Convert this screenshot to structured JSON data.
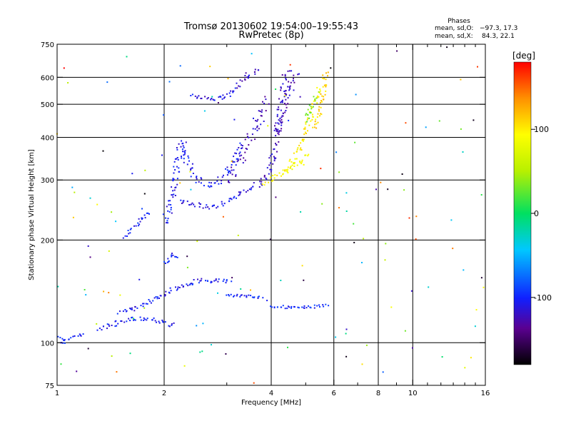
{
  "chart_data": {
    "type": "scatter",
    "title": "Tromsø 20130602 19:54:00–19:55:43",
    "subtitle": "RwPretec (8p)",
    "xlabel": "Frequency [MHz]",
    "ylabel": "Stationary phase Virtual Height [km]",
    "x_scale": "log",
    "y_scale": "log",
    "xlim": [
      1,
      16
    ],
    "ylim": [
      75,
      750
    ],
    "x_ticks": [
      1,
      2,
      4,
      6,
      8,
      10,
      16
    ],
    "x_tick_labels": [
      "1",
      "2",
      "4",
      "6",
      "8",
      "10",
      "16"
    ],
    "x_minor_ticks": [
      3,
      5,
      7,
      9,
      11,
      12,
      13,
      14,
      15
    ],
    "x_gridlines": [
      2,
      4,
      6,
      8,
      10
    ],
    "y_ticks": [
      75,
      100,
      200,
      300,
      400,
      500,
      600,
      750
    ],
    "y_tick_labels": [
      "75",
      "100",
      "200",
      "300",
      "400",
      "500",
      "600",
      "750"
    ],
    "y_gridlines": [
      100,
      200,
      300,
      400,
      500,
      600
    ],
    "grid": true,
    "stats": {
      "header": "Phases",
      "o_label": "mean, sd,O:",
      "o_values": "−97.3, 17.3",
      "x_label": "mean, sd,X:",
      "x_values": "84.3, 22.1"
    },
    "colorbar": {
      "label": "[deg]",
      "range": [
        -180,
        180
      ],
      "ticks": [
        100,
        0,
        -100
      ],
      "tick_labels": [
        "100",
        "0",
        "-100"
      ],
      "colormap": "rainbow"
    },
    "traces": [
      {
        "points": [
          [
            1.0,
            104
          ],
          [
            1.05,
            102
          ],
          [
            1.1,
            104
          ],
          [
            1.15,
            105
          ],
          [
            1.2,
            106
          ]
        ],
        "phase": -100,
        "spread": 2
      },
      {
        "points": [
          [
            1.02,
            100
          ],
          [
            1.06,
            99
          ]
        ],
        "phase": -100,
        "spread": 1.5
      },
      {
        "points": [
          [
            1.3,
            110
          ],
          [
            1.4,
            112
          ],
          [
            1.55,
            116
          ],
          [
            1.7,
            118
          ],
          [
            1.85,
            117
          ],
          [
            2.0,
            114
          ],
          [
            2.15,
            112
          ]
        ],
        "phase": -105,
        "spread": 3
      },
      {
        "points": [
          [
            1.5,
            122
          ],
          [
            1.65,
            126
          ],
          [
            1.8,
            132
          ],
          [
            1.95,
            137
          ],
          [
            2.1,
            143
          ],
          [
            2.3,
            148
          ],
          [
            2.5,
            152
          ],
          [
            2.8,
            152
          ],
          [
            3.1,
            150
          ]
        ],
        "phase": -105,
        "spread": 3
      },
      {
        "points": [
          [
            2.0,
            170
          ],
          [
            2.1,
            182
          ],
          [
            2.2,
            178
          ]
        ],
        "phase": -100,
        "spread": 3
      },
      {
        "points": [
          [
            3.0,
            138
          ],
          [
            3.4,
            137
          ],
          [
            3.8,
            136
          ]
        ],
        "phase": -100,
        "spread": 2
      },
      {
        "points": [
          [
            4.0,
            128
          ],
          [
            4.5,
            127
          ],
          [
            5.0,
            127
          ],
          [
            5.5,
            128
          ],
          [
            5.8,
            129
          ]
        ],
        "phase": -100,
        "spread": 2
      },
      {
        "points": [
          [
            1.55,
            205
          ],
          [
            1.65,
            218
          ],
          [
            1.75,
            233
          ],
          [
            1.82,
            245
          ]
        ],
        "phase": -100,
        "spread": 3
      },
      {
        "points": [
          [
            2.0,
            225
          ],
          [
            2.05,
            240
          ],
          [
            2.1,
            260
          ],
          [
            2.15,
            300
          ],
          [
            2.2,
            350
          ],
          [
            2.25,
            390
          ],
          [
            2.35,
            330
          ],
          [
            2.5,
            300
          ],
          [
            2.7,
            290
          ],
          [
            2.9,
            300
          ],
          [
            3.1,
            330
          ],
          [
            3.3,
            380
          ]
        ],
        "phase": -105,
        "spread": 5
      },
      {
        "points": [
          [
            2.2,
            262
          ],
          [
            2.4,
            255
          ],
          [
            2.6,
            250
          ],
          [
            2.8,
            252
          ],
          [
            3.0,
            260
          ],
          [
            3.2,
            270
          ],
          [
            3.4,
            280
          ],
          [
            3.6,
            290
          ]
        ],
        "phase": -110,
        "spread": 4
      },
      {
        "points": [
          [
            3.0,
            300
          ],
          [
            3.2,
            330
          ],
          [
            3.4,
            380
          ],
          [
            3.6,
            430
          ],
          [
            3.8,
            480
          ],
          [
            3.95,
            520
          ]
        ],
        "phase": -122,
        "spread": 6
      },
      {
        "points": [
          [
            3.2,
            560
          ],
          [
            3.4,
            600
          ],
          [
            3.6,
            630
          ],
          [
            3.75,
            620
          ]
        ],
        "phase": -120,
        "spread": 4
      },
      {
        "points": [
          [
            2.4,
            530
          ],
          [
            2.7,
            520
          ],
          [
            3.0,
            525
          ],
          [
            3.2,
            560
          ]
        ],
        "phase": -110,
        "spread": 3
      },
      {
        "points": [
          [
            3.6,
            290
          ],
          [
            3.8,
            300
          ],
          [
            4.0,
            330
          ],
          [
            4.1,
            380
          ],
          [
            4.2,
            450
          ],
          [
            4.3,
            520
          ],
          [
            4.4,
            600
          ],
          [
            4.5,
            640
          ]
        ],
        "phase": -120,
        "spread": 5
      },
      {
        "points": [
          [
            4.1,
            410
          ],
          [
            4.3,
            470
          ],
          [
            4.5,
            540
          ],
          [
            4.7,
            620
          ]
        ],
        "phase": -125,
        "spread": 5
      },
      {
        "points": [
          [
            3.8,
            295
          ],
          [
            4.1,
            305
          ],
          [
            4.4,
            320
          ],
          [
            4.7,
            350
          ],
          [
            4.9,
            400
          ],
          [
            5.1,
            450
          ],
          [
            5.3,
            500
          ],
          [
            5.5,
            560
          ]
        ],
        "phase": 100,
        "spread": 4
      },
      {
        "points": [
          [
            4.3,
            310
          ],
          [
            4.6,
            330
          ],
          [
            4.9,
            340
          ],
          [
            5.1,
            360
          ]
        ],
        "phase": 90,
        "spread": 4
      },
      {
        "points": [
          [
            5.3,
            420
          ],
          [
            5.5,
            480
          ],
          [
            5.6,
            560
          ],
          [
            5.7,
            630
          ]
        ],
        "phase": 110,
        "spread": 4
      },
      {
        "points": [
          [
            5.0,
            450
          ],
          [
            5.2,
            500
          ],
          [
            5.4,
            540
          ]
        ],
        "phase": 30,
        "spread": 4
      }
    ],
    "noise_seed": 7,
    "noise_count": 140
  }
}
